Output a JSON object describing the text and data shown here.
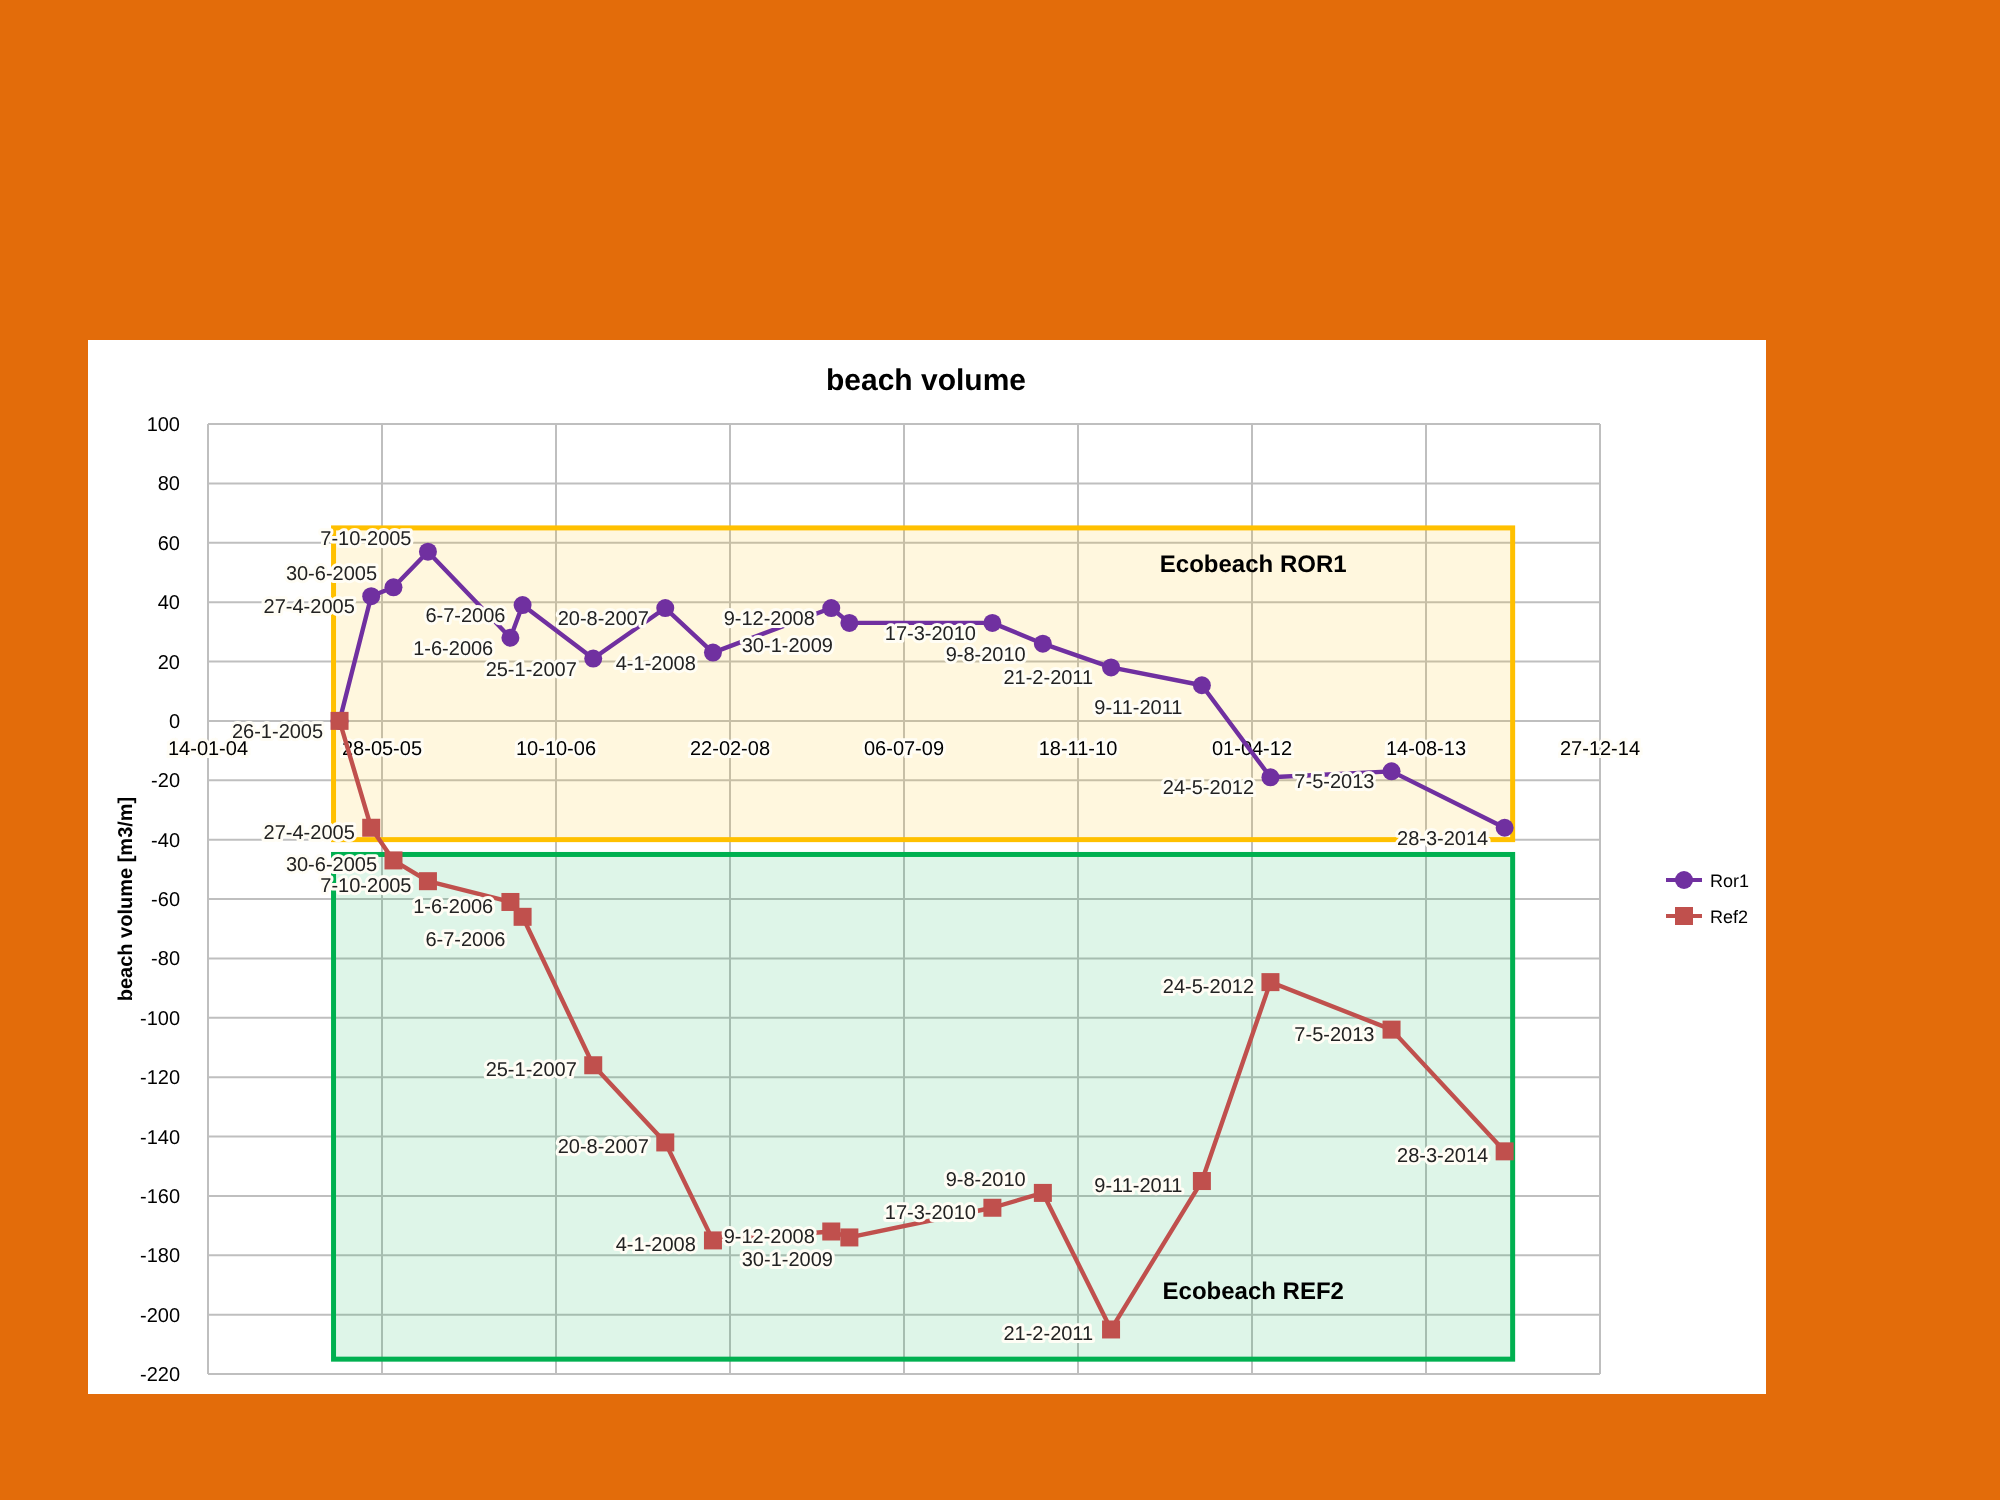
{
  "chart_data": {
    "type": "line",
    "title": "beach volume",
    "ylabel": "beach volume [m3/m]",
    "x": [
      "2005-01-26",
      "2005-04-27",
      "2005-06-30",
      "2005-10-07",
      "2006-06-01",
      "2006-07-06",
      "2007-01-25",
      "2007-08-20",
      "2008-01-04",
      "2008-12-09",
      "2009-01-30",
      "2010-03-17",
      "2010-08-09",
      "2011-02-21",
      "2011-11-09",
      "2012-05-24",
      "2013-05-07",
      "2014-03-28"
    ],
    "series": [
      {
        "name": "Ror1",
        "color": "#7030a0",
        "marker": "circle",
        "values": [
          0,
          42,
          45,
          57,
          28,
          39,
          21,
          38,
          23,
          38,
          33,
          33,
          26,
          18,
          12,
          -19,
          -17,
          -36
        ],
        "value_labels": [
          "26-1-2005",
          "27-4-2005",
          "30-6-2005",
          "7-10-2005",
          "1-6-2006",
          "6-7-2006",
          "25-1-2007",
          "20-8-2007",
          "4-1-2008",
          "9-12-2008",
          "30-1-2009",
          "17-3-2010",
          "9-8-2010",
          "21-2-2011",
          "9-11-2011",
          "24-5-2012",
          "7-5-2013",
          "28-3-2014"
        ]
      },
      {
        "name": "Ref2",
        "color": "#c0504d",
        "marker": "square",
        "values": [
          0,
          -36,
          -47,
          -54,
          -61,
          -66,
          -116,
          -142,
          -175,
          -172,
          -174,
          -164,
          -159,
          -205,
          -155,
          -88,
          -104,
          -145
        ],
        "value_labels": [
          null,
          "27-4-2005",
          "30-6-2005",
          "7-10-2005",
          "1-6-2006",
          "6-7-2006",
          "25-1-2007",
          "20-8-2007",
          "4-1-2008",
          "9-12-2008",
          "30-1-2009",
          "17-3-2010",
          "9-8-2010",
          "21-2-2011",
          "9-11-2011",
          "24-5-2012",
          "7-5-2013",
          "28-3-2014"
        ]
      }
    ],
    "xlim": [
      "2004-01-14",
      "2014-12-27"
    ],
    "xticks": [
      {
        "value": "2004-01-14",
        "label": "14-01-04"
      },
      {
        "value": "2005-05-28",
        "label": "28-05-05"
      },
      {
        "value": "2006-10-10",
        "label": "10-10-06"
      },
      {
        "value": "2008-02-22",
        "label": "22-02-08"
      },
      {
        "value": "2009-07-06",
        "label": "06-07-09"
      },
      {
        "value": "2010-11-18",
        "label": "18-11-10"
      },
      {
        "value": "2012-04-01",
        "label": "01-04-12"
      },
      {
        "value": "2013-08-14",
        "label": "14-08-13"
      },
      {
        "value": "2014-12-27",
        "label": "27-12-14"
      }
    ],
    "ylim": [
      -220,
      100
    ],
    "yticks": [
      -220,
      -200,
      -180,
      -160,
      -140,
      -120,
      -100,
      -80,
      -60,
      -40,
      -20,
      0,
      20,
      40,
      60,
      80,
      100
    ],
    "bands": [
      {
        "axis": "y",
        "from": -40,
        "to": 65,
        "label": "Ecobeach ROR1",
        "color": "#ffc000"
      },
      {
        "axis": "y",
        "from": -215,
        "to": -45,
        "label": "Ecobeach REF2",
        "color": "#00b050"
      }
    ],
    "grid": true,
    "legend": "right",
    "line_style": "solid"
  }
}
